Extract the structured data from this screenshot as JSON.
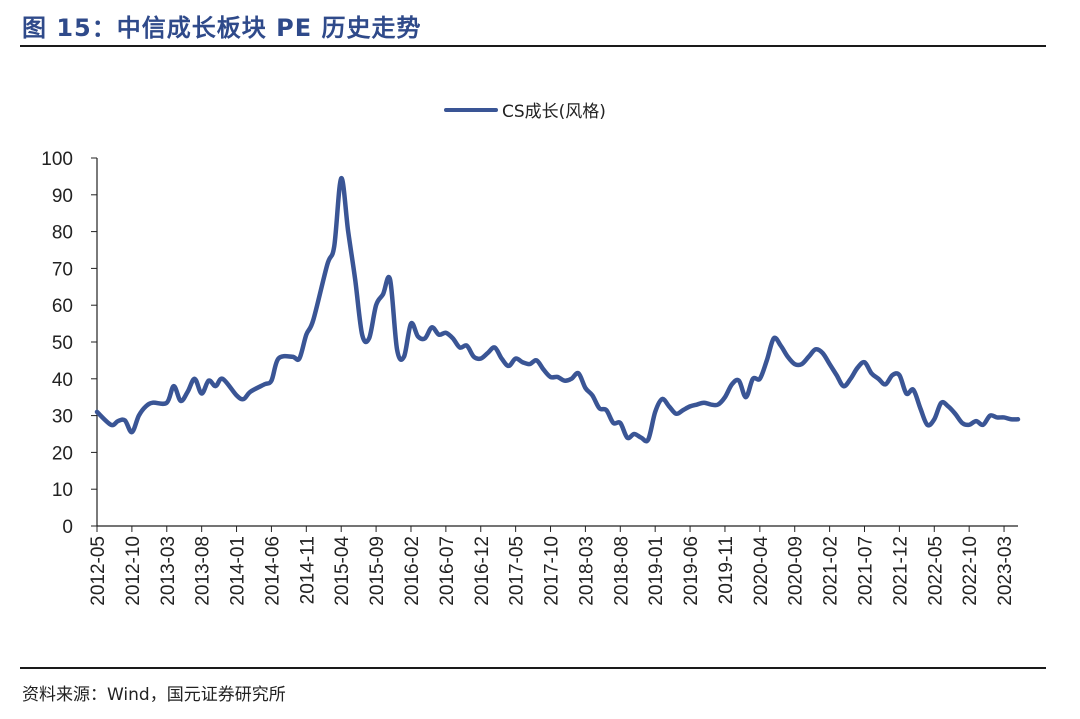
{
  "title": "图 15：中信成长板块 PE 历史走势",
  "source": "资料来源：Wind，国元证券研究所",
  "colors": {
    "accent": "#2F4A8A",
    "series": "#3A5595",
    "axis": "#222222"
  },
  "chart_data": {
    "type": "line",
    "series": [
      {
        "name": "CS成长(风格)",
        "x": [
          "2012-05",
          "2012-07",
          "2012-08",
          "2012-09",
          "2012-10",
          "2012-11",
          "2012-12",
          "2013-01",
          "2013-03",
          "2013-04",
          "2013-05",
          "2013-06",
          "2013-07",
          "2013-08",
          "2013-09",
          "2013-10",
          "2013-11",
          "2014-01",
          "2014-02",
          "2014-03",
          "2014-05",
          "2014-06",
          "2014-07",
          "2014-09",
          "2014-10",
          "2014-11",
          "2014-12",
          "2015-02",
          "2015-03",
          "2015-04",
          "2015-05",
          "2015-06",
          "2015-07",
          "2015-08",
          "2015-09",
          "2015-10",
          "2015-11",
          "2015-12",
          "2016-01",
          "2016-02",
          "2016-03",
          "2016-04",
          "2016-05",
          "2016-06",
          "2016-07",
          "2016-08",
          "2016-09",
          "2016-10",
          "2016-11",
          "2016-12",
          "2017-01",
          "2017-02",
          "2017-03",
          "2017-04",
          "2017-05",
          "2017-06",
          "2017-07",
          "2017-08",
          "2017-09",
          "2017-10",
          "2017-11",
          "2017-12",
          "2018-01",
          "2018-02",
          "2018-03",
          "2018-04",
          "2018-05",
          "2018-06",
          "2018-07",
          "2018-08",
          "2018-09",
          "2018-10",
          "2018-11",
          "2018-12",
          "2019-01",
          "2019-02",
          "2019-03",
          "2019-04",
          "2019-05",
          "2019-06",
          "2019-07",
          "2019-08",
          "2019-09",
          "2019-10",
          "2019-11",
          "2019-12",
          "2020-01",
          "2020-02",
          "2020-03",
          "2020-04",
          "2020-05",
          "2020-06",
          "2020-07",
          "2020-08",
          "2020-09",
          "2020-10",
          "2020-11",
          "2020-12",
          "2021-01",
          "2021-02",
          "2021-03",
          "2021-04",
          "2021-05",
          "2021-06",
          "2021-07",
          "2021-08",
          "2021-09",
          "2021-10",
          "2021-11",
          "2021-12",
          "2022-01",
          "2022-02",
          "2022-03",
          "2022-04",
          "2022-05",
          "2022-06",
          "2022-07",
          "2022-08",
          "2022-09",
          "2022-10",
          "2022-11",
          "2022-12",
          "2023-01",
          "2023-02",
          "2023-03",
          "2023-04",
          "2023-05"
        ],
        "values": [
          31,
          27.5,
          28.5,
          28.7,
          25.5,
          30,
          32.5,
          33.5,
          33.5,
          38,
          34,
          36.5,
          40,
          36,
          39.5,
          38,
          40,
          35.5,
          34.5,
          36.5,
          38.5,
          39.5,
          45.5,
          46,
          45.5,
          52,
          56,
          71,
          76,
          94.5,
          80,
          67,
          52,
          51,
          60,
          63,
          67,
          48,
          46,
          55,
          51.5,
          51,
          54,
          52,
          52.5,
          51,
          48.5,
          49,
          46,
          45.5,
          47,
          48.5,
          45.5,
          43.5,
          45.5,
          44.5,
          44,
          45,
          42.5,
          40.5,
          40.5,
          39.5,
          40,
          41.5,
          37.5,
          35.5,
          32,
          31.5,
          28,
          28,
          24,
          25,
          24,
          23.5,
          31,
          34.5,
          32.5,
          30.5,
          31.5,
          32.5,
          33,
          33.5,
          33,
          33,
          35,
          38.5,
          39.5,
          35,
          40,
          40,
          45,
          51,
          49,
          46,
          44,
          44,
          46,
          48,
          47,
          44,
          41,
          38,
          40,
          43,
          44.5,
          41.5,
          40,
          38.5,
          41,
          41,
          36,
          37,
          32,
          27.5,
          29,
          33.5,
          32.5,
          30.5,
          28,
          27.5,
          28.5,
          27.5,
          30,
          29.5,
          29.5,
          29,
          29
        ]
      }
    ],
    "categories": [
      "2012-05",
      "2012-10",
      "2013-03",
      "2013-08",
      "2014-01",
      "2014-06",
      "2014-11",
      "2015-04",
      "2015-09",
      "2016-02",
      "2016-07",
      "2016-12",
      "2017-05",
      "2017-10",
      "2018-03",
      "2018-08",
      "2019-01",
      "2019-06",
      "2019-11",
      "2020-04",
      "2020-09",
      "2021-02",
      "2021-07",
      "2021-12",
      "2022-05",
      "2022-10",
      "2023-03"
    ],
    "yticks": [
      0,
      10,
      20,
      30,
      40,
      50,
      60,
      70,
      80,
      90,
      100
    ],
    "ylim": [
      0,
      100
    ],
    "xlim": [
      "2012-05",
      "2023-05"
    ],
    "grid": false,
    "legend_position": "top-center"
  }
}
